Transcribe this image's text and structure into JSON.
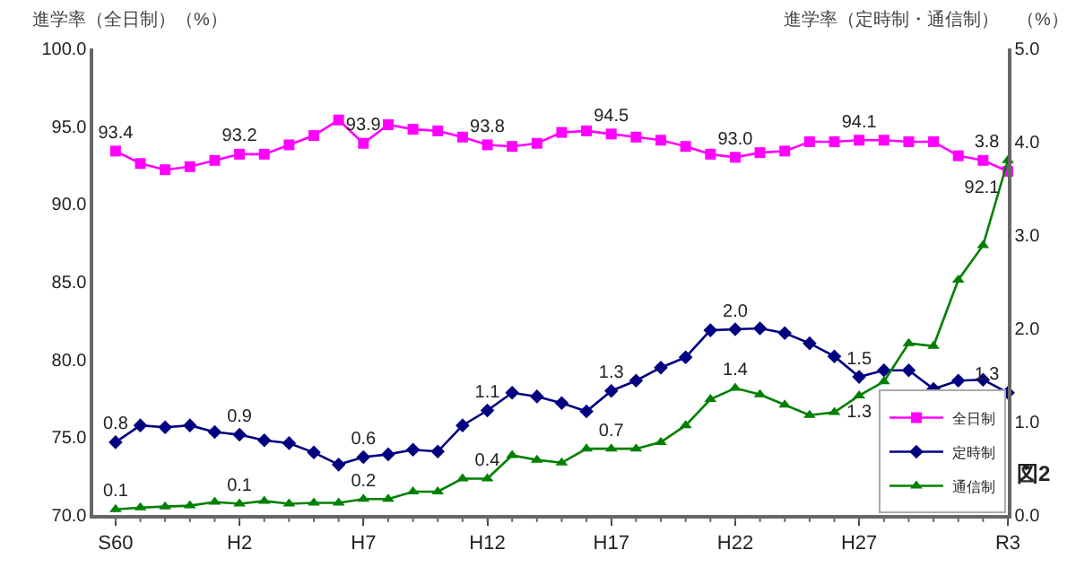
{
  "chart_data": {
    "type": "line",
    "ylabel": "進学率（全日制）（%）",
    "y2label": "進学率（定時制・通信制）　（%）",
    "categories": [
      "S60",
      null,
      null,
      null,
      null,
      "H2",
      null,
      null,
      null,
      null,
      "H7",
      null,
      null,
      null,
      null,
      "H12",
      null,
      null,
      null,
      null,
      "H17",
      null,
      null,
      null,
      null,
      "H22",
      null,
      null,
      null,
      null,
      "H27",
      null,
      null,
      null,
      null,
      null,
      "R3"
    ],
    "series": [
      {
        "name": "全日制",
        "color": "#ff00ff",
        "marker": "square",
        "values": [
          93.4,
          92.6,
          92.2,
          92.4,
          92.8,
          93.2,
          93.2,
          93.8,
          94.4,
          95.4,
          93.9,
          95.1,
          94.8,
          94.7,
          94.3,
          93.8,
          93.7,
          93.9,
          94.6,
          94.7,
          94.5,
          94.3,
          94.1,
          93.7,
          93.2,
          93.0,
          93.3,
          93.4,
          94.0,
          94.0,
          94.1,
          94.1,
          94.0,
          94.0,
          93.1,
          92.8,
          92.1
        ],
        "value_labels": [
          "93.4",
          null,
          null,
          null,
          null,
          "93.2",
          null,
          null,
          null,
          null,
          "93.9",
          null,
          null,
          null,
          null,
          "93.8",
          null,
          null,
          null,
          null,
          "94.5",
          null,
          null,
          null,
          null,
          "93.0",
          null,
          null,
          null,
          null,
          "94.1",
          null,
          null,
          null,
          null,
          null,
          "92.1"
        ]
      },
      {
        "name": "定時制",
        "color": "#000080",
        "marker": "diamond",
        "axis": "y2",
        "values": [
          0.78,
          0.96,
          0.94,
          0.96,
          0.89,
          0.86,
          0.8,
          0.77,
          0.67,
          0.54,
          0.62,
          0.65,
          0.7,
          0.68,
          0.96,
          1.12,
          1.31,
          1.27,
          1.2,
          1.11,
          1.33,
          1.44,
          1.58,
          1.69,
          1.98,
          1.99,
          2.0,
          1.95,
          1.84,
          1.7,
          1.48,
          1.55,
          1.55,
          1.35,
          1.44,
          1.45,
          1.31
        ],
        "value_labels": [
          "0.8",
          null,
          null,
          null,
          null,
          "0.9",
          null,
          null,
          null,
          null,
          "0.6",
          null,
          null,
          null,
          null,
          "1.1",
          null,
          null,
          null,
          null,
          "1.3",
          null,
          null,
          null,
          null,
          "2.0",
          null,
          null,
          null,
          null,
          "1.5",
          null,
          null,
          null,
          null,
          null,
          "1.3"
        ]
      },
      {
        "name": "通信制",
        "color": "#008000",
        "marker": "triangle",
        "axis": "y2",
        "values": [
          0.06,
          0.08,
          0.09,
          0.1,
          0.14,
          0.12,
          0.15,
          0.12,
          0.13,
          0.13,
          0.17,
          0.17,
          0.25,
          0.25,
          0.39,
          0.39,
          0.64,
          0.59,
          0.56,
          0.71,
          0.71,
          0.71,
          0.78,
          0.96,
          1.24,
          1.36,
          1.29,
          1.18,
          1.07,
          1.1,
          1.28,
          1.43,
          1.84,
          1.81,
          2.52,
          2.89,
          3.8
        ],
        "value_labels": [
          "0.1",
          null,
          null,
          null,
          null,
          "0.1",
          null,
          null,
          null,
          null,
          "0.2",
          null,
          null,
          null,
          null,
          "0.4",
          null,
          null,
          null,
          null,
          "0.7",
          null,
          null,
          null,
          null,
          "1.4",
          null,
          null,
          null,
          null,
          "1.3",
          null,
          null,
          null,
          null,
          null,
          "3.8"
        ]
      }
    ],
    "ylim": [
      70,
      100
    ],
    "yticks": [
      {
        "value": 70,
        "label": "70.0"
      },
      {
        "value": 75,
        "label": "75.0"
      },
      {
        "value": 80,
        "label": "80.0"
      },
      {
        "value": 85,
        "label": "85.0"
      },
      {
        "value": 90,
        "label": "90.0"
      },
      {
        "value": 95,
        "label": "95.0"
      },
      {
        "value": 100,
        "label": "100.0"
      }
    ],
    "y2lim": [
      0,
      5
    ],
    "y2ticks": [
      {
        "value": 0,
        "label": "0.0"
      },
      {
        "value": 1,
        "label": "1.0"
      },
      {
        "value": 2,
        "label": "2.0"
      },
      {
        "value": 3,
        "label": "3.0"
      },
      {
        "value": 4,
        "label": "4.0"
      },
      {
        "value": 5,
        "label": "5.0"
      }
    ],
    "annotations": [
      "図2"
    ],
    "legend": "bottom right",
    "line_style": "solid"
  }
}
